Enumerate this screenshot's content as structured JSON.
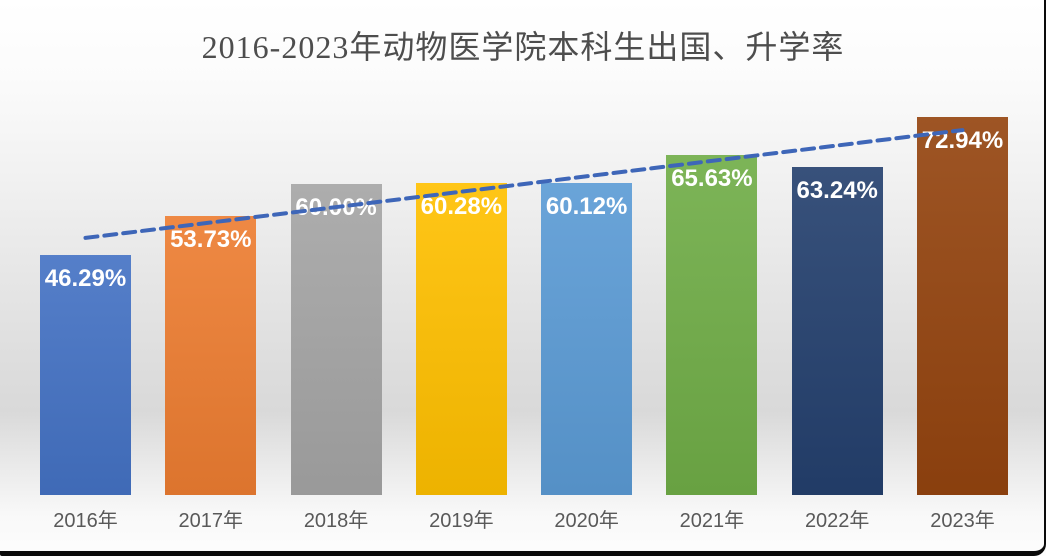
{
  "title": "2016-2023年动物医学院本科生出国、升学率",
  "chart_data": {
    "type": "bar",
    "title": "2016-2023年动物医学院本科生出国、升学率",
    "categories": [
      "2016年",
      "2017年",
      "2018年",
      "2019年",
      "2020年",
      "2021年",
      "2022年",
      "2023年"
    ],
    "values": [
      46.29,
      53.73,
      60.0,
      60.28,
      60.12,
      65.63,
      63.24,
      72.94
    ],
    "labels": [
      "46.29%",
      "53.73%",
      "60.00%",
      "60.28%",
      "60.12%",
      "65.63%",
      "63.24%",
      "72.94%"
    ],
    "bar_colors": [
      "#4472C4",
      "#ED7D31",
      "#A5A5A5",
      "#FFC000",
      "#5B9BD5",
      "#70AD47",
      "#24406E",
      "#94440F"
    ],
    "label_color": "#FFFFFF",
    "xlabel": "",
    "ylabel": "",
    "ylim": [
      0,
      76.2
    ],
    "grid": false,
    "legend": false,
    "data_labels": "inside-top, white bold",
    "trendline": {
      "type": "linear-dashed",
      "color": "#3E66B8",
      "from_value": 49.6,
      "to_value": 70.4
    }
  }
}
